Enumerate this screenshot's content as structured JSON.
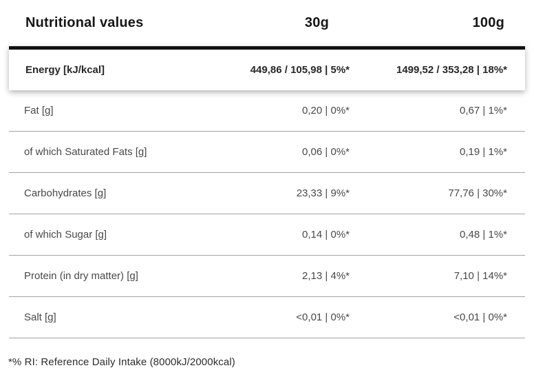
{
  "table": {
    "headers": {
      "label": "Nutritional values",
      "col_30g": "30g",
      "col_100g": "100g"
    },
    "highlight_row": {
      "label": "Energy [kJ/kcal]",
      "v30": "449,86 / 105,98 | 5%*",
      "v100": "1499,52 / 353,28 | 18%*"
    },
    "rows": [
      {
        "label": "Fat [g]",
        "v30": "0,20 | 0%*",
        "v100": "0,67 | 1%*"
      },
      {
        "label": "of which Saturated Fats [g]",
        "v30": "0,06 | 0%*",
        "v100": "0,19 | 1%*"
      },
      {
        "label": "Carbohydrates [g]",
        "v30": "23,33 | 9%*",
        "v100": "77,76 | 30%*"
      },
      {
        "label": "of which Sugar [g]",
        "v30": "0,14 | 0%*",
        "v100": "0,48 | 1%*"
      },
      {
        "label": "Protein (in dry matter) [g]",
        "v30": "2,13 | 4%*",
        "v100": "7,10 | 14%*"
      },
      {
        "label": "Salt [g]",
        "v30": "<0,01 | 0%*",
        "v100": "<0,01 | 0%*"
      }
    ],
    "footnote": "*% RI: Reference Daily Intake (8000kJ/2000kcal)"
  },
  "colors": {
    "background": "#ffffff",
    "thick_rule": "#121212",
    "separator": "#a3a3a3",
    "header_text": "#161616",
    "highlight_text": "#272727",
    "row_text": "#484848"
  }
}
